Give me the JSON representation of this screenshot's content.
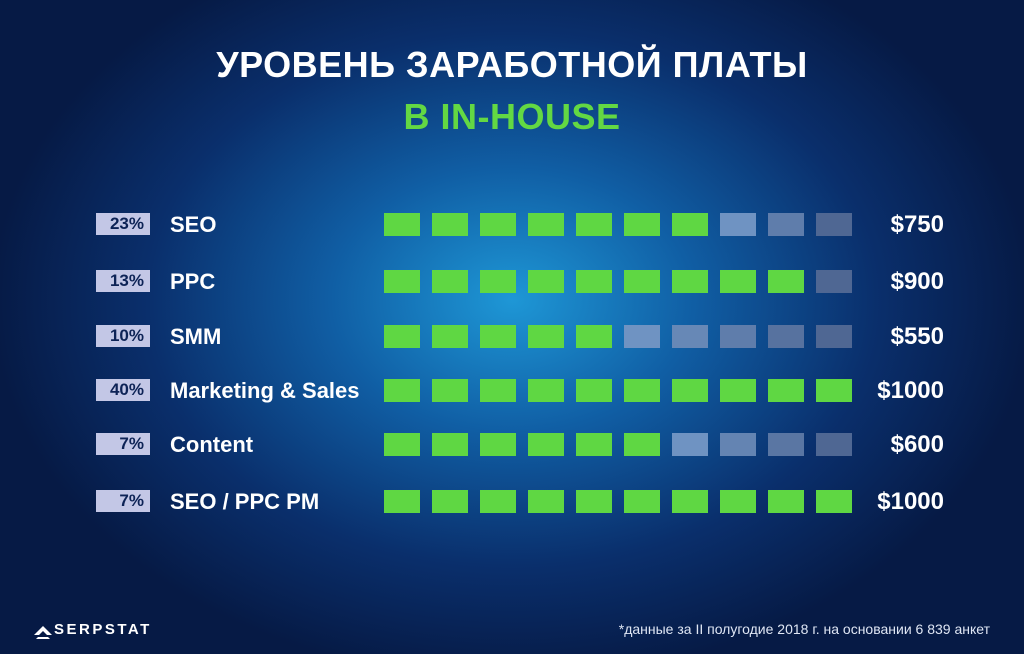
{
  "title": "УРОВЕНЬ ЗАРАБОТНОЙ ПЛАТЫ",
  "subtitle": "В IN-HOUSE",
  "chart_data": {
    "type": "bar",
    "title": "УРОВЕНЬ ЗАРАБОТНОЙ ПЛАТЫ",
    "subtitle": "В IN-HOUSE",
    "max_blocks": 10,
    "rows": [
      {
        "share": "23%",
        "label": "SEO",
        "salary": "$750",
        "filled": 7
      },
      {
        "share": "13%",
        "label": "PPC",
        "salary": "$900",
        "filled": 9
      },
      {
        "share": "10%",
        "label": "SMM",
        "salary": "$550",
        "filled": 5
      },
      {
        "share": "40%",
        "label": "Marketing & Sales",
        "salary": "$1000",
        "filled": 10
      },
      {
        "share": "7%",
        "label": "Content",
        "salary": "$600",
        "filled": 6
      },
      {
        "share": "7%",
        "label": "SEO / PPC PM",
        "salary": "$1000",
        "filled": 10
      }
    ]
  },
  "colors": {
    "filled": "#5fd743",
    "empty_light": "#6f93c2",
    "empty_dark": "#4f6793",
    "pct_bg": "#c3c7e6"
  },
  "logo": {
    "text": "SERPSTAT",
    "icon": "serpstat-logo-icon"
  },
  "footnote": "*данные за II полугодие 2018 г. на основании 6 839 анкет"
}
